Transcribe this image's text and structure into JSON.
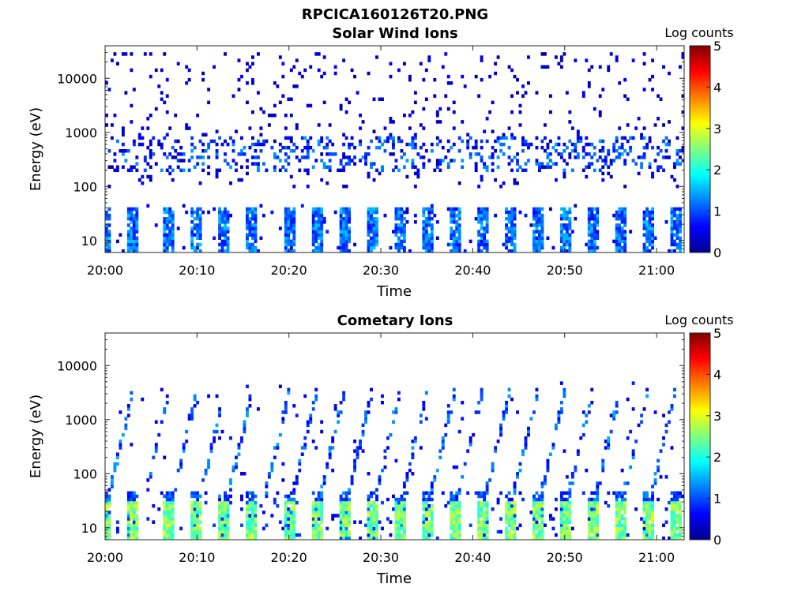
{
  "figure_title": "RPCICA160126T20.PNG",
  "colorbar": {
    "label": "Log counts",
    "ticks": [
      "0",
      "1",
      "2",
      "3",
      "4",
      "5"
    ],
    "min": 0,
    "max": 5,
    "colormap": "jet"
  },
  "chart_data": [
    {
      "type": "heatmap",
      "title": "Solar Wind Ions",
      "xlabel": "Time",
      "ylabel": "Energy (eV)",
      "yscale": "log",
      "ylim": [
        6,
        40000
      ],
      "xlim": [
        "20:00",
        "21:03"
      ],
      "x_ticks": [
        "20:00",
        "20:10",
        "20:20",
        "20:30",
        "20:40",
        "20:50",
        "21:00"
      ],
      "y_ticks": [
        "10",
        "100",
        "1000",
        "10000"
      ],
      "features": {
        "low_energy_bursts": {
          "times": [
            "20:00",
            "20:03",
            "20:07",
            "20:10",
            "20:13",
            "20:16",
            "20:20",
            "20:23",
            "20:26",
            "20:29",
            "20:32",
            "20:35",
            "20:38",
            "20:41",
            "20:44",
            "20:47",
            "20:50",
            "20:53",
            "20:56",
            "20:59",
            "21:02"
          ],
          "energy_range": [
            6,
            40
          ],
          "typical_level": 1.1
        },
        "mid_energy_band": {
          "energy_range": [
            200,
            800
          ],
          "typical_level": 0.9
        },
        "sparse_background": {
          "energy_range": [
            100,
            30000
          ],
          "typical_level": 0.3
        }
      }
    },
    {
      "type": "heatmap",
      "title": "Cometary Ions",
      "xlabel": "Time",
      "ylabel": "Energy (eV)",
      "yscale": "log",
      "ylim": [
        6,
        40000
      ],
      "xlim": [
        "20:00",
        "21:03"
      ],
      "x_ticks": [
        "20:00",
        "20:10",
        "20:20",
        "20:30",
        "20:40",
        "20:50",
        "21:00"
      ],
      "y_ticks": [
        "10",
        "100",
        "1000",
        "10000"
      ],
      "features": {
        "low_energy_bursts": {
          "times": [
            "20:00",
            "20:03",
            "20:07",
            "20:10",
            "20:13",
            "20:16",
            "20:20",
            "20:23",
            "20:26",
            "20:29",
            "20:32",
            "20:35",
            "20:38",
            "20:41",
            "20:44",
            "20:47",
            "20:50",
            "20:53",
            "20:56",
            "20:59",
            "21:02"
          ],
          "energy_range": [
            6,
            30
          ],
          "typical_level": 2.6
        },
        "rising_dispersion_streaks": {
          "energy_range": [
            30,
            3000
          ],
          "typical_level": 1.0
        }
      }
    }
  ]
}
